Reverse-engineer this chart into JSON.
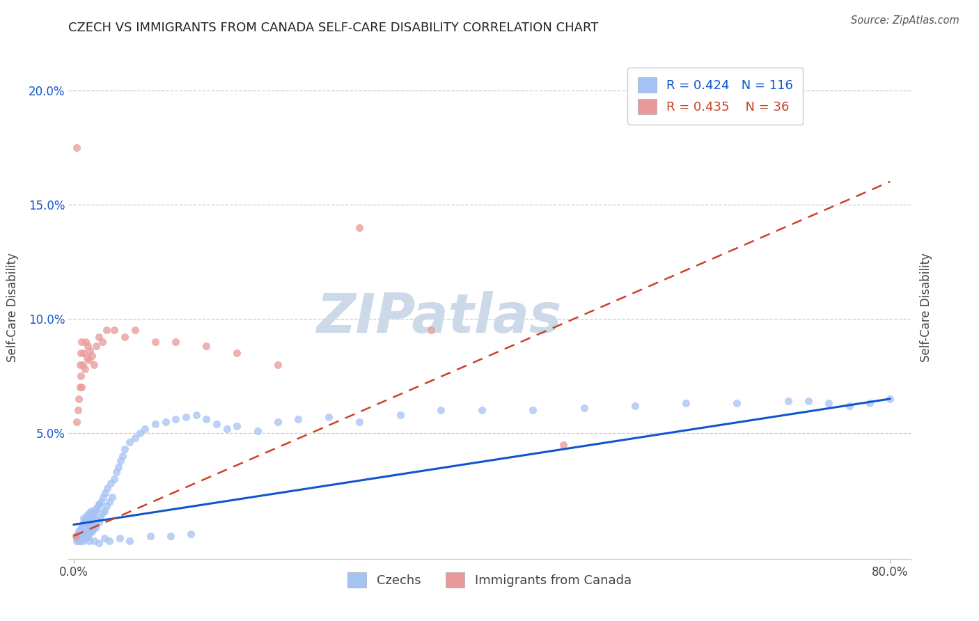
{
  "title": "CZECH VS IMMIGRANTS FROM CANADA SELF-CARE DISABILITY CORRELATION CHART",
  "source": "Source: ZipAtlas.com",
  "xlabel_czechs": "Czechs",
  "xlabel_canada": "Immigrants from Canada",
  "ylabel": "Self-Care Disability",
  "xlim": [
    -0.005,
    0.82
  ],
  "ylim": [
    -0.005,
    0.215
  ],
  "R_czech": 0.424,
  "N_czech": 116,
  "R_canada": 0.435,
  "N_canada": 36,
  "blue_scatter_color": "#a4c2f4",
  "pink_scatter_color": "#ea9999",
  "blue_line_color": "#1155cc",
  "pink_line_color": "#cc4125",
  "dashed_line_color": "#cc4125",
  "ytick_color": "#1155cc",
  "watermark": "ZIPatlas",
  "watermark_color": "#ccd9e8",
  "czech_x": [
    0.002,
    0.003,
    0.004,
    0.004,
    0.005,
    0.005,
    0.005,
    0.006,
    0.006,
    0.007,
    0.007,
    0.007,
    0.008,
    0.008,
    0.008,
    0.009,
    0.009,
    0.009,
    0.009,
    0.01,
    0.01,
    0.01,
    0.01,
    0.01,
    0.011,
    0.011,
    0.011,
    0.012,
    0.012,
    0.012,
    0.013,
    0.013,
    0.013,
    0.014,
    0.014,
    0.015,
    0.015,
    0.015,
    0.016,
    0.016,
    0.017,
    0.017,
    0.017,
    0.018,
    0.018,
    0.019,
    0.019,
    0.02,
    0.02,
    0.021,
    0.021,
    0.022,
    0.022,
    0.023,
    0.024,
    0.025,
    0.025,
    0.026,
    0.027,
    0.028,
    0.029,
    0.03,
    0.031,
    0.032,
    0.033,
    0.035,
    0.036,
    0.038,
    0.04,
    0.042,
    0.044,
    0.046,
    0.048,
    0.05,
    0.055,
    0.06,
    0.065,
    0.07,
    0.08,
    0.09,
    0.1,
    0.11,
    0.12,
    0.13,
    0.14,
    0.15,
    0.16,
    0.18,
    0.2,
    0.22,
    0.25,
    0.28,
    0.32,
    0.36,
    0.4,
    0.45,
    0.5,
    0.55,
    0.6,
    0.65,
    0.7,
    0.72,
    0.74,
    0.76,
    0.78,
    0.8,
    0.015,
    0.02,
    0.025,
    0.03,
    0.035,
    0.045,
    0.055,
    0.075,
    0.095,
    0.115
  ],
  "czech_y": [
    0.005,
    0.003,
    0.004,
    0.006,
    0.003,
    0.005,
    0.007,
    0.004,
    0.006,
    0.003,
    0.005,
    0.008,
    0.004,
    0.006,
    0.009,
    0.003,
    0.005,
    0.007,
    0.01,
    0.004,
    0.006,
    0.008,
    0.011,
    0.013,
    0.005,
    0.007,
    0.01,
    0.004,
    0.007,
    0.012,
    0.006,
    0.008,
    0.014,
    0.005,
    0.009,
    0.006,
    0.009,
    0.015,
    0.007,
    0.011,
    0.008,
    0.011,
    0.016,
    0.007,
    0.013,
    0.008,
    0.014,
    0.009,
    0.015,
    0.01,
    0.017,
    0.009,
    0.016,
    0.012,
    0.018,
    0.011,
    0.019,
    0.013,
    0.02,
    0.015,
    0.022,
    0.016,
    0.024,
    0.018,
    0.026,
    0.02,
    0.028,
    0.022,
    0.03,
    0.033,
    0.035,
    0.038,
    0.04,
    0.043,
    0.046,
    0.048,
    0.05,
    0.052,
    0.054,
    0.055,
    0.056,
    0.057,
    0.058,
    0.056,
    0.054,
    0.052,
    0.053,
    0.051,
    0.055,
    0.056,
    0.057,
    0.055,
    0.058,
    0.06,
    0.06,
    0.06,
    0.061,
    0.062,
    0.063,
    0.063,
    0.064,
    0.064,
    0.063,
    0.062,
    0.063,
    0.065,
    0.003,
    0.003,
    0.002,
    0.004,
    0.003,
    0.004,
    0.003,
    0.005,
    0.005,
    0.006
  ],
  "canada_x": [
    0.002,
    0.003,
    0.004,
    0.005,
    0.006,
    0.006,
    0.007,
    0.007,
    0.008,
    0.008,
    0.009,
    0.01,
    0.011,
    0.012,
    0.013,
    0.014,
    0.015,
    0.016,
    0.018,
    0.02,
    0.022,
    0.025,
    0.028,
    0.032,
    0.04,
    0.05,
    0.06,
    0.08,
    0.1,
    0.13,
    0.16,
    0.2,
    0.28,
    0.35,
    0.48,
    0.003
  ],
  "canada_y": [
    0.005,
    0.055,
    0.06,
    0.065,
    0.07,
    0.08,
    0.075,
    0.085,
    0.07,
    0.09,
    0.08,
    0.085,
    0.078,
    0.09,
    0.083,
    0.088,
    0.082,
    0.086,
    0.084,
    0.08,
    0.088,
    0.092,
    0.09,
    0.095,
    0.095,
    0.092,
    0.095,
    0.09,
    0.09,
    0.088,
    0.085,
    0.08,
    0.14,
    0.095,
    0.045,
    0.175
  ]
}
